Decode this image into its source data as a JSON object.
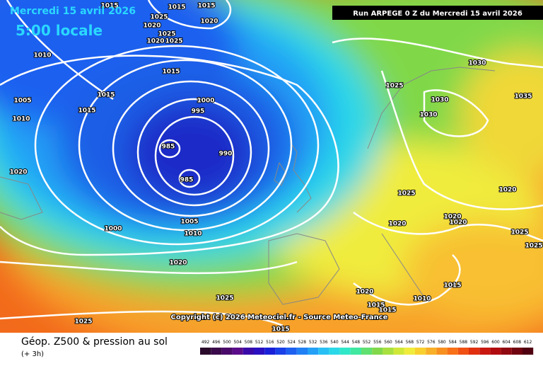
{
  "header": {
    "date": "Mercredi 15 avril 2026",
    "time": "5:00 locale",
    "run": "Run ARPEGE 0 Z du Mercredi 15 avril 2026"
  },
  "copyright": "Copyright (c) 2026 Meteociel.fr - Source Meteo-France",
  "footer": {
    "title": "Géop. Z500 & pression au sol",
    "step": "(+ 3h)"
  },
  "isobar_labels": [
    1015,
    1015,
    1015,
    1025,
    1020,
    1020,
    1025,
    1020,
    1025,
    1010,
    1015,
    1015,
    1005,
    1015,
    1010,
    1000,
    995,
    985,
    990,
    985,
    1020,
    1000,
    1005,
    1010,
    1020,
    1025,
    1025,
    1030,
    1025,
    1030,
    1035,
    1030,
    1025,
    1020,
    1020,
    1020,
    1020,
    1025,
    1025,
    1015,
    1010,
    1020,
    1015,
    1015,
    1015
  ],
  "legend": {
    "values": [
      492,
      496,
      500,
      504,
      508,
      512,
      516,
      520,
      524,
      528,
      532,
      536,
      540,
      544,
      548,
      552,
      556,
      560,
      564,
      568,
      572,
      576,
      580,
      584,
      588,
      592,
      596,
      600,
      604,
      608,
      612
    ],
    "colors": [
      "#2a0a2a",
      "#3a0a4a",
      "#4a0a6a",
      "#5a0c8a",
      "#3a0aa8",
      "#2a10c0",
      "#1a20d8",
      "#1a40e8",
      "#1e60f0",
      "#2080f4",
      "#24a0f6",
      "#28c0f4",
      "#2ad8e8",
      "#30e8c8",
      "#40e8a0",
      "#60e070",
      "#80d84a",
      "#a8e040",
      "#d0e838",
      "#f0ec3c",
      "#f8d030",
      "#f8b028",
      "#f89020",
      "#f87018",
      "#f05014",
      "#e03010",
      "#c81810",
      "#b00c10",
      "#900810",
      "#700410",
      "#500010"
    ]
  }
}
